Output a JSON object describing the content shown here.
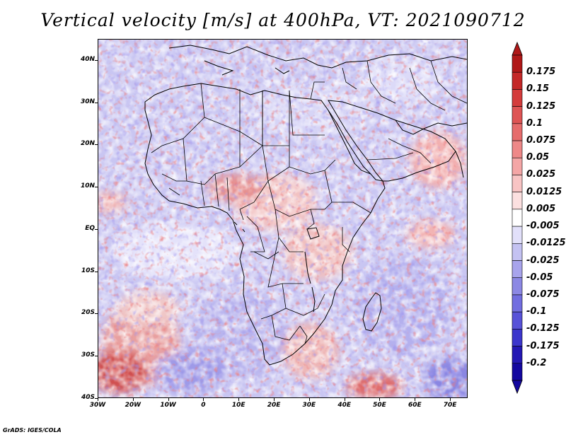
{
  "title": "Vertical velocity [m/s] at 400hPa, VT: 2021090712",
  "footer": "GrADS: IGES/COLA",
  "map": {
    "projection": "latlon",
    "lon_range": [
      -30,
      75
    ],
    "lat_range": [
      -40,
      45
    ],
    "lat_labels": [
      "40N",
      "30N",
      "20N",
      "10N",
      "EQ",
      "10S",
      "20S",
      "30S",
      "40S"
    ],
    "lat_values": [
      40,
      30,
      20,
      10,
      0,
      -10,
      -20,
      -30,
      -40
    ],
    "lon_labels": [
      "30W",
      "20W",
      "10W",
      "0",
      "10E",
      "20E",
      "30E",
      "40E",
      "50E",
      "60E",
      "70E"
    ],
    "lon_values": [
      -30,
      -20,
      -10,
      0,
      10,
      20,
      30,
      40,
      50,
      60,
      70
    ]
  },
  "colorbar": {
    "labels": [
      "0.175",
      "0.15",
      "0.125",
      "0.1",
      "0.075",
      "0.05",
      "0.025",
      "0.0125",
      "0.005",
      "-0.005",
      "-0.0125",
      "-0.025",
      "-0.05",
      "-0.075",
      "-0.1",
      "-0.125",
      "-0.175",
      "-0.2"
    ],
    "colors": [
      "#b01818",
      "#c42828",
      "#d43c3c",
      "#de5454",
      "#e66c6c",
      "#ee8888",
      "#f4a6a6",
      "#f8c4c4",
      "#fce0e0",
      "#ffffff",
      "#e2e0fa",
      "#c4c2f2",
      "#a8a4ec",
      "#8c88e4",
      "#726ee0",
      "#5852d8",
      "#3c36cc",
      "#2418b4",
      "#1408a0"
    ]
  },
  "icons": {
    "colorbar_top": "triangle-up-icon",
    "colorbar_bottom": "triangle-down-icon"
  }
}
